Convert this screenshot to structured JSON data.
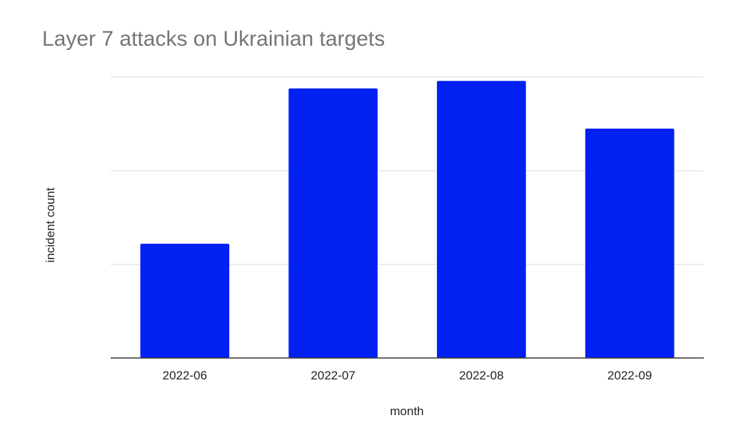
{
  "chart_data": {
    "type": "bar",
    "title": "Layer 7 attacks on Ukrainian targets",
    "xlabel": "month",
    "ylabel": "incident count",
    "categories": [
      "2022-06",
      "2022-07",
      "2022-08",
      "2022-09"
    ],
    "values": [
      1.22,
      2.88,
      2.96,
      2.45
    ],
    "ylim": [
      0,
      3
    ],
    "grid": true,
    "y_tick_labels_shown": false,
    "legend": "none",
    "colors": {
      "bar": "#0320f3",
      "grid": "#d9d9d9",
      "axis": "#333333",
      "title": "#757575"
    }
  }
}
